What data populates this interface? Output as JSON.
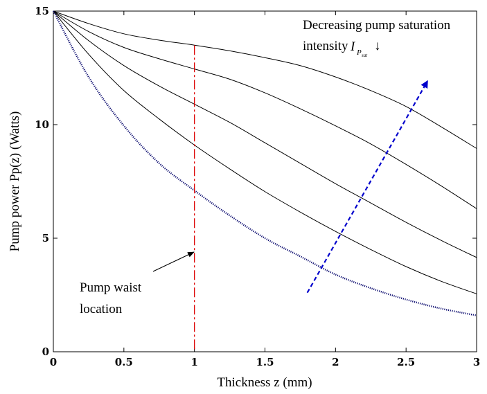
{
  "chart_data": {
    "type": "line",
    "title": "",
    "xlabel": "Thickness z  (mm)",
    "ylabel": "Pump power Pp(z) (Watts)",
    "xlim": [
      0,
      3
    ],
    "ylim": [
      0,
      15
    ],
    "xticks": [
      "0",
      "0.5",
      "1",
      "1.5",
      "2",
      "2.5",
      "3"
    ],
    "yticks": [
      "0",
      "5",
      "10",
      "15"
    ],
    "grid": false,
    "series": [
      {
        "x": [
          0,
          0.25,
          0.5,
          0.75,
          1,
          1.25,
          1.5,
          1.75,
          2,
          2.25,
          2.5,
          2.75,
          3
        ],
        "y": [
          15,
          14.45,
          14.0,
          13.72,
          13.5,
          13.25,
          12.95,
          12.6,
          12.1,
          11.5,
          10.8,
          9.9,
          8.95
        ],
        "color": "#000000",
        "style": "solid"
      },
      {
        "x": [
          0,
          0.25,
          0.5,
          0.75,
          1,
          1.25,
          1.5,
          1.75,
          2,
          2.25,
          2.5,
          2.75,
          3
        ],
        "y": [
          15,
          14.1,
          13.4,
          12.9,
          12.45,
          12.0,
          11.4,
          10.7,
          9.95,
          9.15,
          8.25,
          7.3,
          6.3
        ],
        "color": "#000000",
        "style": "solid"
      },
      {
        "x": [
          0,
          0.25,
          0.5,
          0.75,
          1,
          1.25,
          1.5,
          1.75,
          2,
          2.25,
          2.5,
          2.75,
          3
        ],
        "y": [
          15,
          13.7,
          12.6,
          11.7,
          10.9,
          10.1,
          9.2,
          8.3,
          7.4,
          6.55,
          5.7,
          4.9,
          4.15
        ],
        "color": "#000000",
        "style": "solid"
      },
      {
        "x": [
          0,
          0.25,
          0.5,
          0.75,
          1,
          1.25,
          1.5,
          1.75,
          2,
          2.25,
          2.5,
          2.75,
          3
        ],
        "y": [
          15,
          13.1,
          11.5,
          10.25,
          9.1,
          8.05,
          7.05,
          6.15,
          5.3,
          4.5,
          3.75,
          3.1,
          2.55
        ],
        "color": "#000000",
        "style": "solid"
      },
      {
        "x": [
          0,
          0.25,
          0.5,
          0.75,
          1,
          1.25,
          1.5,
          1.75,
          2,
          2.25,
          2.5,
          2.75,
          3
        ],
        "y": [
          15,
          12.1,
          9.95,
          8.3,
          7.1,
          6.0,
          5.0,
          4.2,
          3.4,
          2.8,
          2.3,
          1.9,
          1.6
        ],
        "color": "#0a0a6e",
        "style": "dotted"
      }
    ],
    "annotations": {
      "waist_line": {
        "x": 1,
        "color": "#dd0000",
        "label_line1": "Pump waist",
        "label_line2": "location"
      },
      "saturation_label_line1": "Decreasing pump saturation",
      "saturation_label_line2": "intensity",
      "symbol_main": "I",
      "symbol_sub": "P",
      "symbol_subsub": "sat",
      "down_arrow": "↓",
      "trend_arrow": {
        "from": [
          1.8,
          2.6
        ],
        "to": [
          2.65,
          11.9
        ],
        "color": "#0000cc"
      }
    }
  }
}
